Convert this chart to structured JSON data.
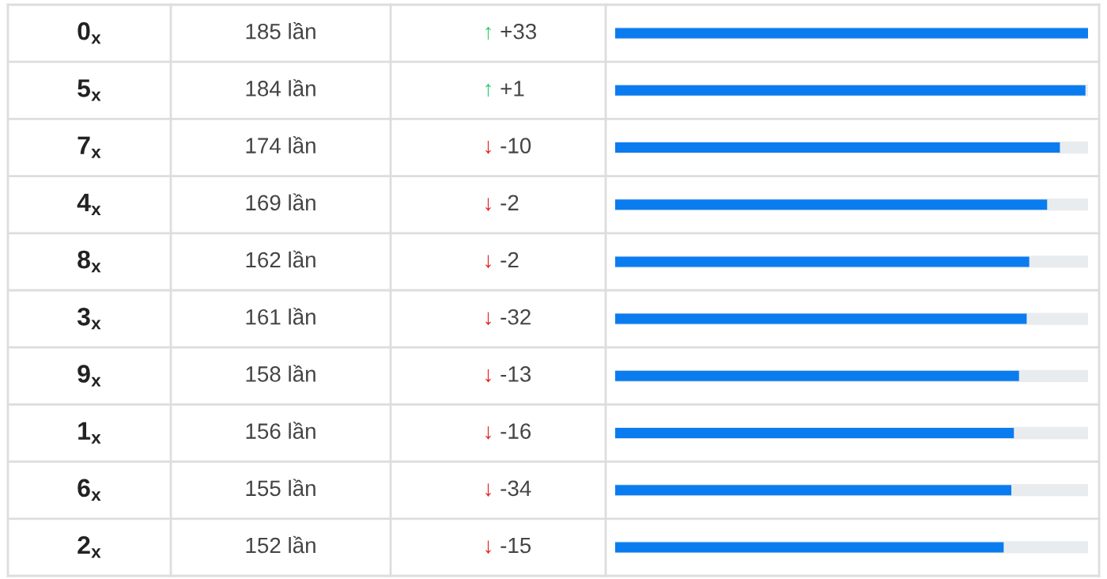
{
  "chart_data": {
    "type": "bar",
    "orientation": "horizontal",
    "categories": [
      "0$_{x}$",
      "5$_{x}$",
      "7$_{x}$",
      "4$_{x}$",
      "8$_{x}$",
      "3$_{x}$",
      "9$_{x}$",
      "1$_{x}$",
      "6$_{x}$",
      "2$_{x}$"
    ],
    "values": [
      185,
      184,
      174,
      169,
      162,
      161,
      158,
      156,
      155,
      152
    ],
    "value_labels": [
      "185 lần",
      "184 lần",
      "174 lần",
      "169 lần",
      "162 lần",
      "161 lần",
      "158 lần",
      "156 lần",
      "155 lần",
      "152 lần"
    ],
    "color": "#0a7cf0",
    "annotations": [
      "↑ +33",
      "↑ +1",
      "↓ -10",
      "↓ -2",
      "↓ -2",
      "↓ -32",
      "↓ -13",
      "↓ -16",
      "↓ -34",
      "↓ -15"
    ],
    "grid": "y"
  }
}
